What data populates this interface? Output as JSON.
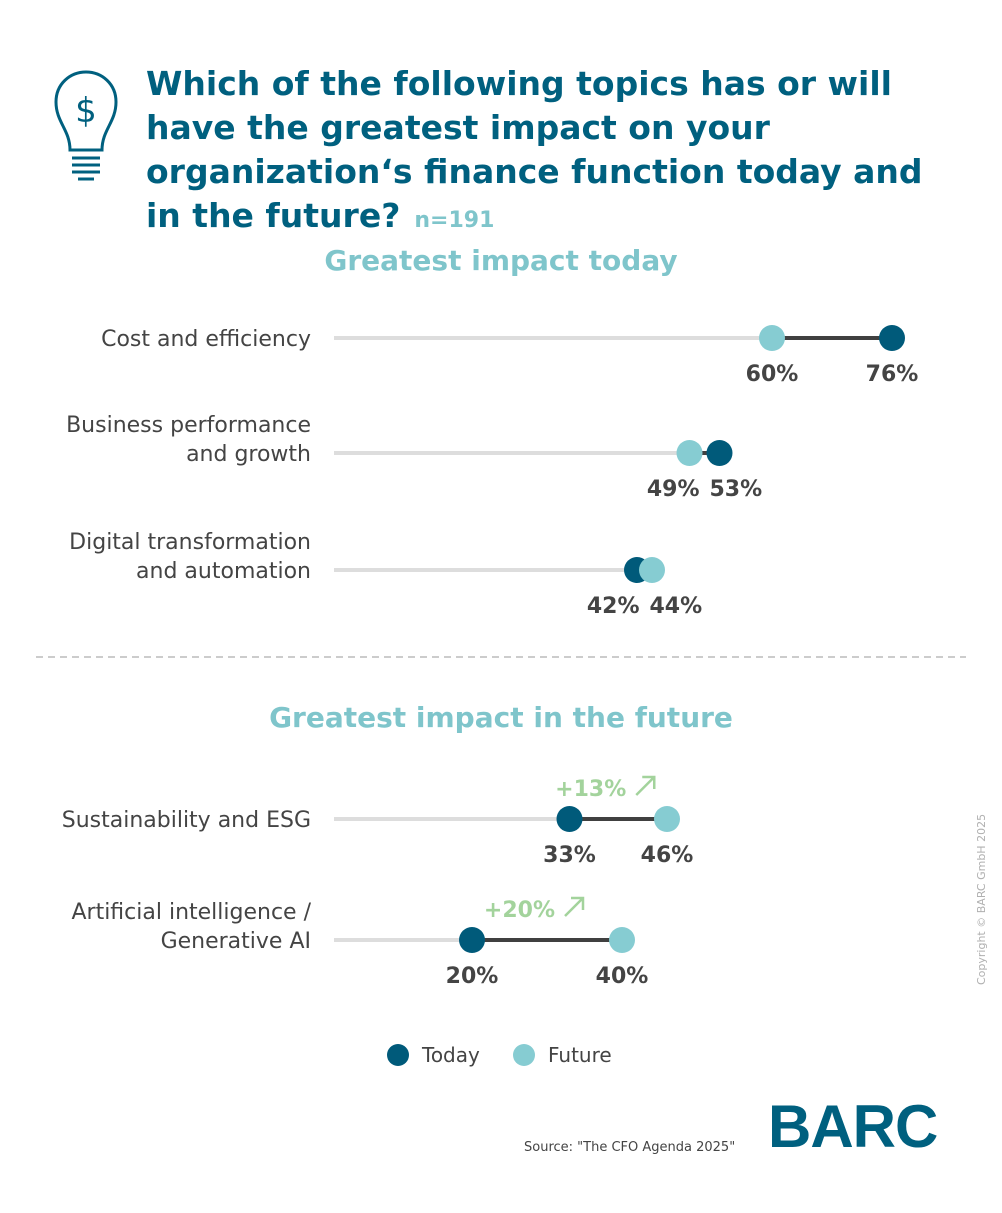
{
  "header": {
    "title": "Which of the following topics has or will have the greatest impact on your organization‘s finance function today and in the future?",
    "sample": "n=191",
    "icon": "lightbulb-dollar-icon"
  },
  "chart_data": {
    "type": "dumbbell",
    "xlim": [
      0,
      100
    ],
    "colors": {
      "today": "#005a7a",
      "future": "#86ccd2",
      "delta": "#a3d39c",
      "connector": "#404040",
      "track": "#dddddd"
    },
    "legend": {
      "placement": "bottom",
      "items": [
        {
          "name": "Today",
          "color": "#005a7a"
        },
        {
          "name": "Future",
          "color": "#86ccd2"
        }
      ]
    },
    "panels": [
      {
        "title": "Greatest impact today",
        "rows": [
          {
            "label": [
              "Cost and efficiency"
            ],
            "today": 76,
            "future": 60
          },
          {
            "label": [
              "Business performance",
              "and growth"
            ],
            "today": 53,
            "future": 49
          },
          {
            "label": [
              "Digital transformation",
              "and automation"
            ],
            "today": 42,
            "future": 44
          }
        ]
      },
      {
        "title": "Greatest impact in the future",
        "rows": [
          {
            "label": [
              "Sustainability and ESG"
            ],
            "today": 33,
            "future": 46,
            "delta": "+13%"
          },
          {
            "label": [
              "Artificial intelligence /",
              "Generative AI"
            ],
            "today": 20,
            "future": 40,
            "delta": "+20%"
          }
        ]
      }
    ]
  },
  "footer": {
    "source": "Source: \"The CFO Agenda 2025\"",
    "copyright": "Copyright © BARC GmbH 2025",
    "logo": "BARC"
  }
}
